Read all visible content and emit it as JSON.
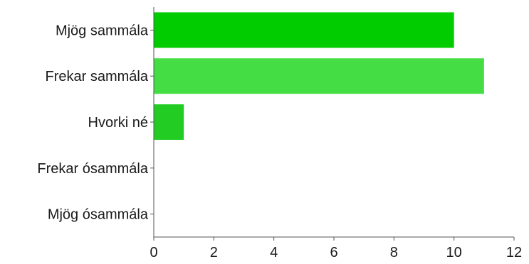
{
  "chart_data": {
    "type": "bar",
    "orientation": "horizontal",
    "title": "",
    "xlabel": "",
    "ylabel": "",
    "categories": [
      "Mjög sammála",
      "Frekar sammála",
      "Hvorki né",
      "Frekar ósammála",
      "Mjög ósammála"
    ],
    "values": [
      10,
      11,
      1,
      0,
      0
    ],
    "colors": [
      "#00cc00",
      "#44dd44",
      "#22cc22",
      "#22cc22",
      "#22cc22"
    ],
    "xlim": [
      0,
      12
    ],
    "x_ticks": [
      "0",
      "2",
      "4",
      "6",
      "8",
      "10",
      "12"
    ],
    "grid": false,
    "legend": "none"
  }
}
